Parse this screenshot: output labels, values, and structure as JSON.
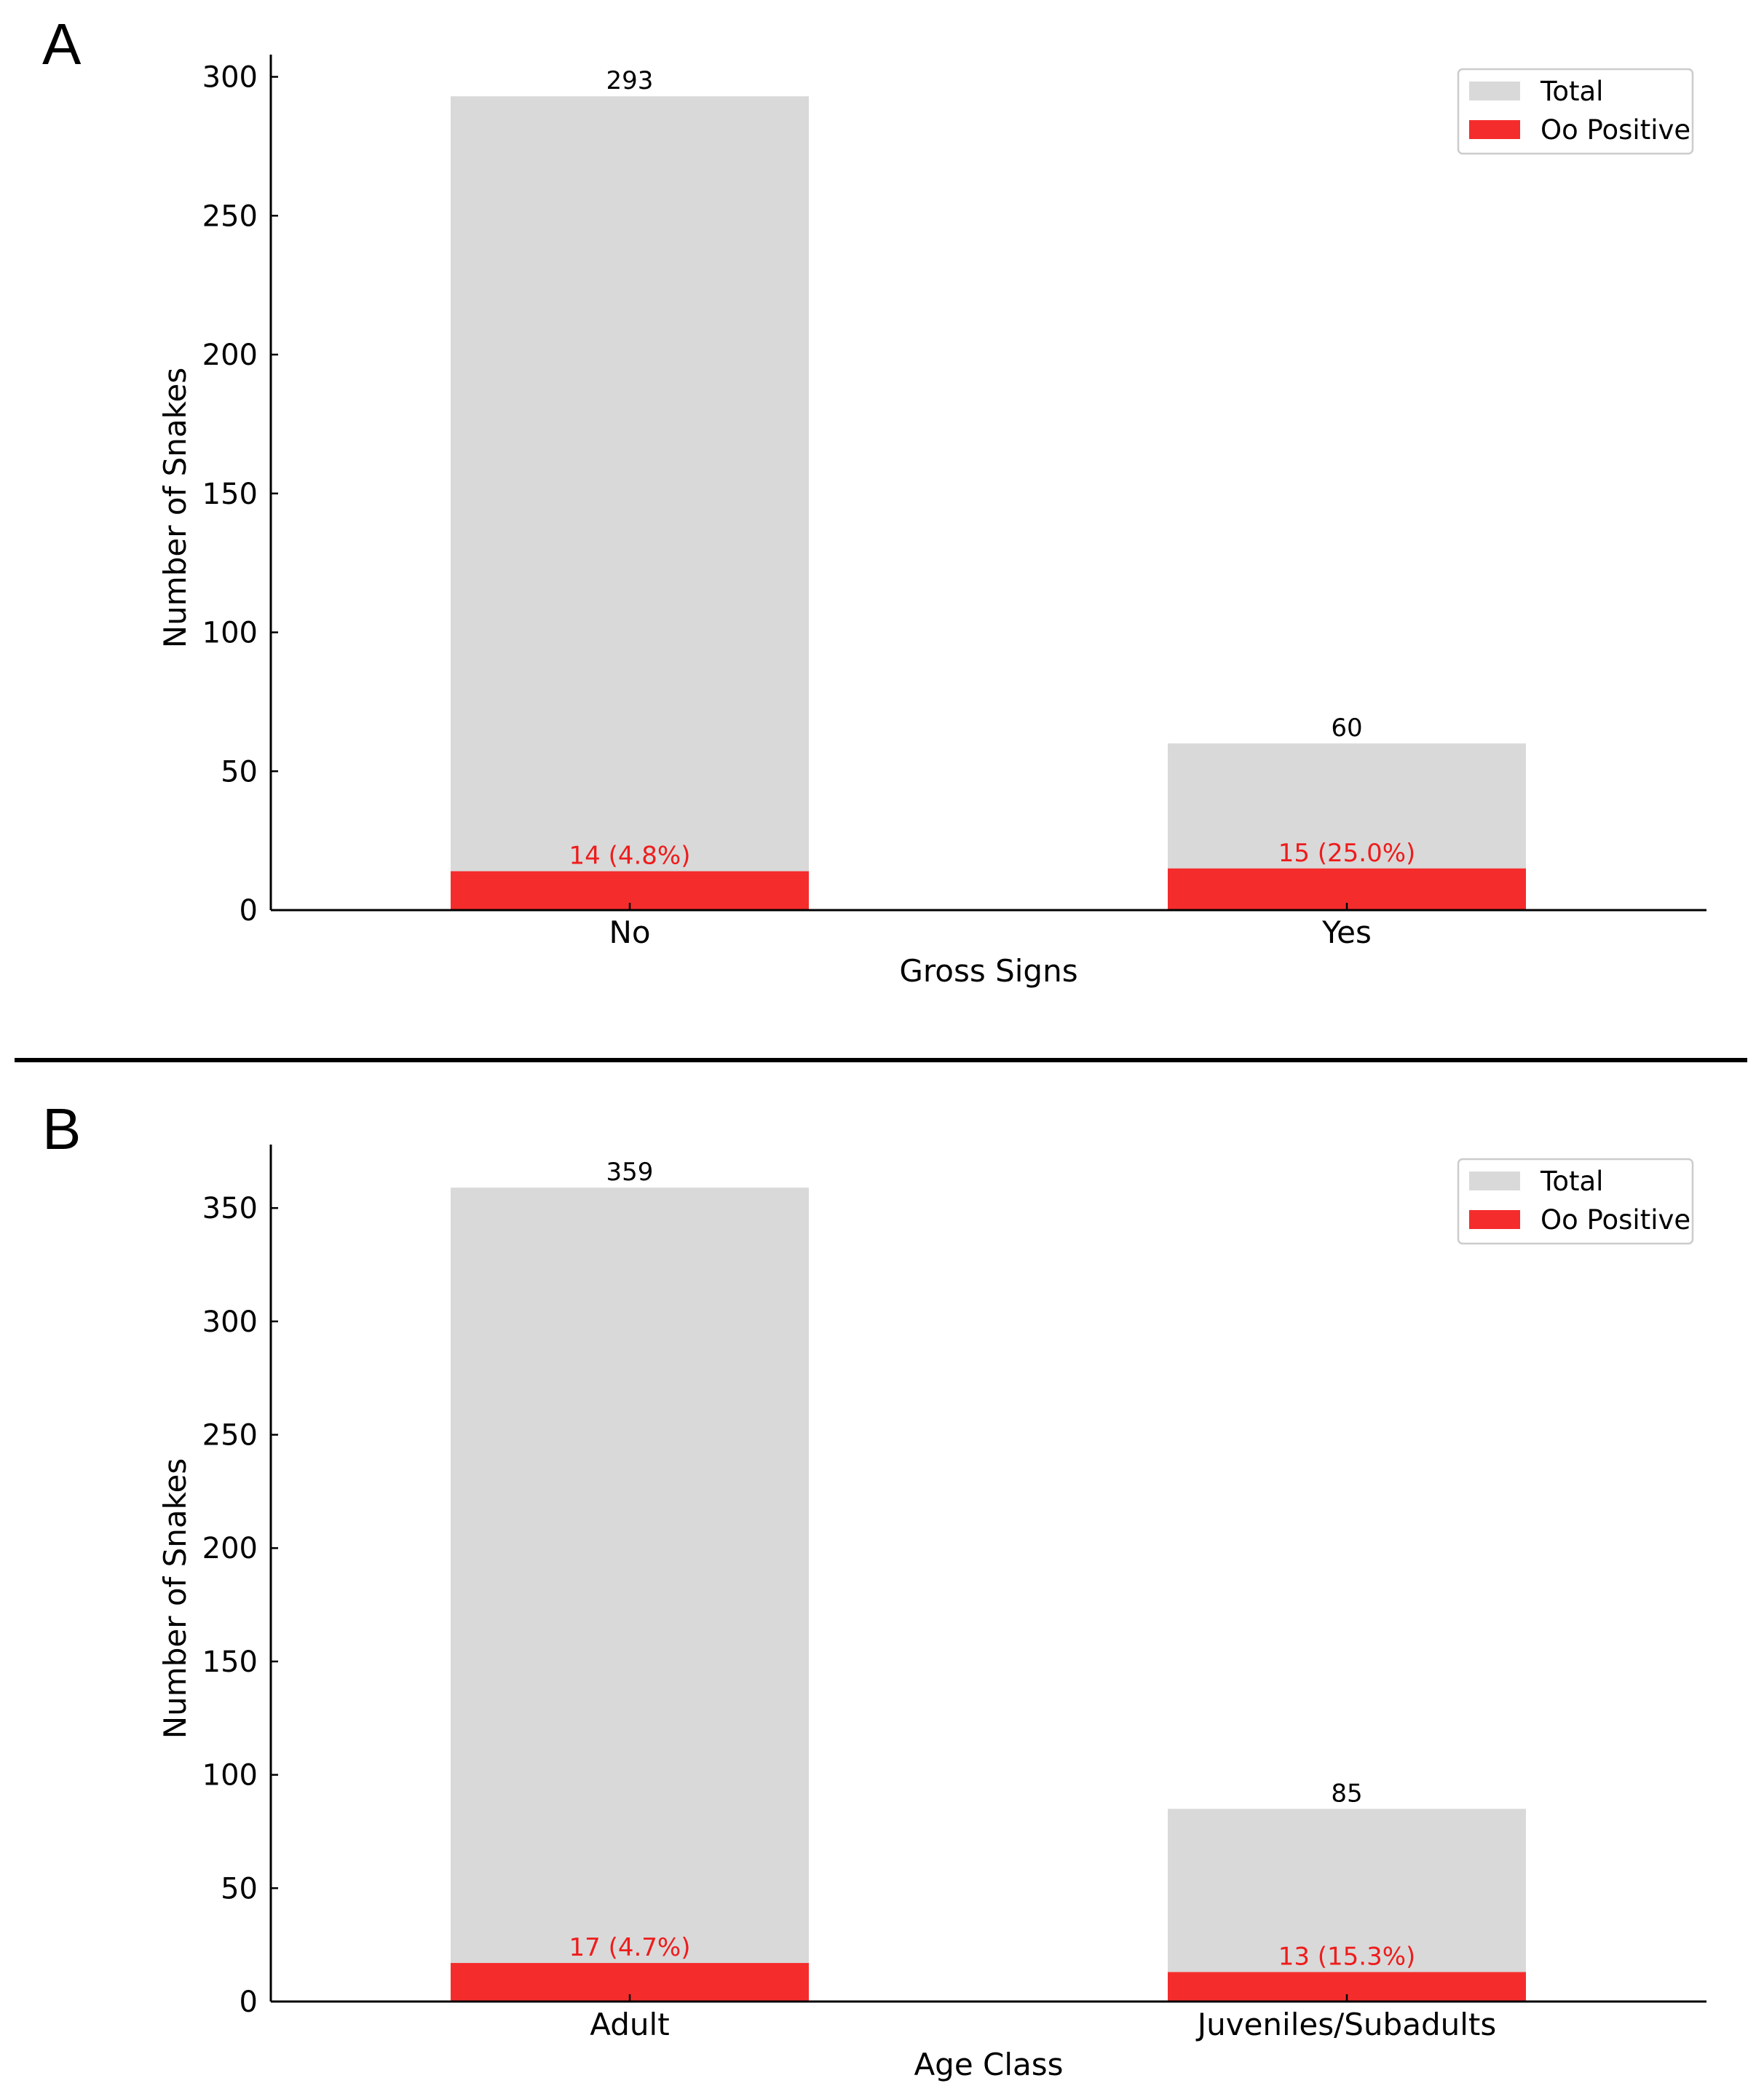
{
  "colors": {
    "total": "#d9d9d9",
    "positive": "#f52c2c",
    "positive_text": "#ee1c1c",
    "axis": "#000000"
  },
  "chart_data": [
    {
      "panel": "A",
      "type": "bar",
      "categories": [
        "No",
        "Yes"
      ],
      "series": [
        {
          "name": "Total",
          "values": [
            293,
            60
          ]
        },
        {
          "name": "Oo Positive",
          "values": [
            14,
            15
          ]
        }
      ],
      "total_labels": [
        "293",
        "60"
      ],
      "positive_labels": [
        "14 (4.8%)",
        "15 (25.0%)"
      ],
      "xlabel": "Gross Signs",
      "ylabel": "Number of Snakes",
      "ylim": [
        0,
        308
      ],
      "yticks": [
        0,
        50,
        100,
        150,
        200,
        250,
        300
      ],
      "legend": [
        "Total",
        "Oo Positive"
      ],
      "legend_position": "top-right"
    },
    {
      "panel": "B",
      "type": "bar",
      "categories": [
        "Adult",
        "Juveniles/Subadults"
      ],
      "series": [
        {
          "name": "Total",
          "values": [
            359,
            85
          ]
        },
        {
          "name": "Oo Positive",
          "values": [
            17,
            13
          ]
        }
      ],
      "total_labels": [
        "359",
        "85"
      ],
      "positive_labels": [
        "17 (4.7%)",
        "13 (15.3%)"
      ],
      "xlabel": "Age Class",
      "ylabel": "Number of Snakes",
      "ylim": [
        0,
        378
      ],
      "yticks": [
        0,
        50,
        100,
        150,
        200,
        250,
        300,
        350
      ],
      "legend": [
        "Total",
        "Oo Positive"
      ],
      "legend_position": "top-right"
    }
  ]
}
